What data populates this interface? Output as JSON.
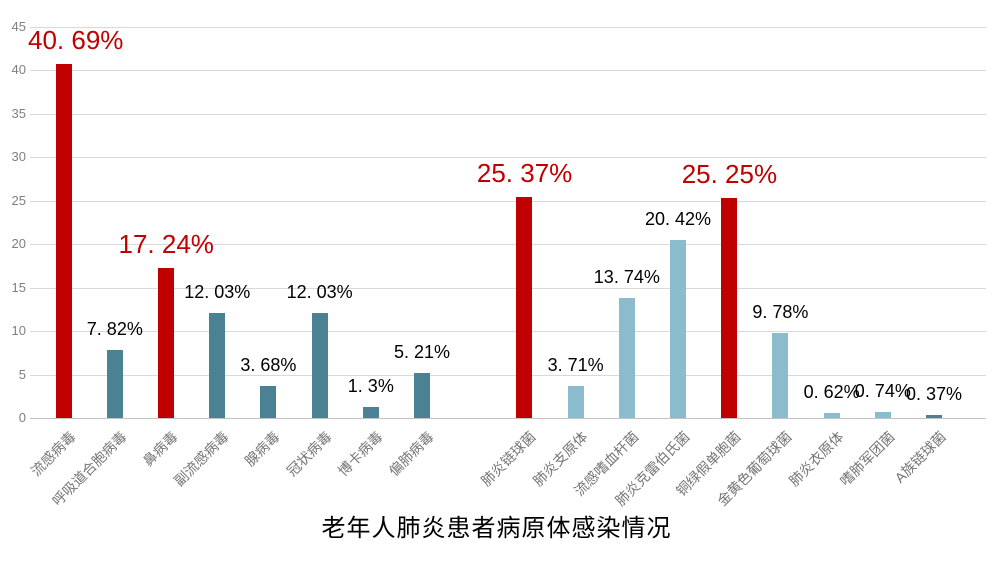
{
  "chart_data": {
    "type": "bar",
    "title": "老年人肺炎患者病原体感染情况",
    "xlabel": "",
    "ylabel": "",
    "ylim": [
      0,
      45
    ],
    "y_ticks": [
      0,
      5,
      10,
      15,
      20,
      25,
      30,
      35,
      40,
      45
    ],
    "grid": "horizontal",
    "legend": "none",
    "categories": [
      "流感病毒",
      "呼吸道合胞病毒",
      "鼻病毒",
      "副流感病毒",
      "腺病毒",
      "冠状病毒",
      "博卡病毒",
      "偏肺病毒",
      "肺炎链球菌",
      "肺炎支原体",
      "流感嗜血杆菌",
      "肺炎克雷伯氏菌",
      "铜绿假单胞菌",
      "金黄色葡萄球菌",
      "肺炎衣原体",
      "嗜肺军团菌",
      "A族链球菌"
    ],
    "values": [
      40.69,
      7.82,
      17.24,
      12.03,
      3.68,
      12.03,
      1.3,
      5.21,
      25.37,
      3.71,
      13.74,
      20.42,
      25.25,
      9.78,
      0.62,
      0.74,
      0.37
    ],
    "data_labels": [
      "40. 69%",
      "7. 82%",
      "17. 24%",
      "12. 03%",
      "3. 68%",
      "12. 03%",
      "1. 3%",
      "5. 21%",
      "25. 37%",
      "3. 71%",
      "13. 74%",
      "20. 42%",
      "25. 25%",
      "9. 78%",
      "0. 62%",
      "0. 74%",
      "0. 37%"
    ],
    "bar_colors": [
      "#c00000",
      "#4a8193",
      "#c00000",
      "#4a8193",
      "#4a8193",
      "#4a8193",
      "#4a8193",
      "#4a8193",
      "#c00000",
      "#8abccd",
      "#8abccd",
      "#8abccd",
      "#c00000",
      "#8abccd",
      "#8abccd",
      "#8abccd",
      "#4a8193"
    ],
    "highlighted": [
      true,
      false,
      true,
      false,
      false,
      false,
      false,
      false,
      true,
      false,
      false,
      false,
      true,
      false,
      false,
      false,
      false
    ],
    "separator_after_index": 7,
    "palette": {
      "highlight_red": "#c00000",
      "virus_teal": "#4a8193",
      "bacteria_blue": "#8abccd",
      "gridline": "#d9d9d9",
      "axis_text": "#7f7f7f",
      "label_text": "#000000"
    }
  }
}
